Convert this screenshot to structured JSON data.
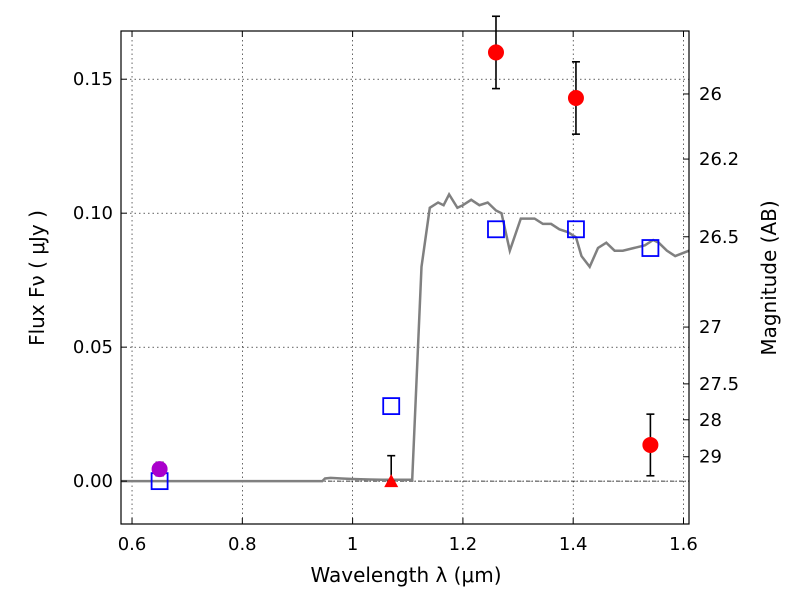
{
  "chart_data": {
    "type": "scatter",
    "title": "",
    "xlabel": "Wavelength  λ (μm)",
    "ylabel": "Flux  Fν  ( μJy )",
    "y2label": "Magnitude (AB)",
    "xlim": [
      0.58,
      1.61
    ],
    "ylim": [
      -0.016,
      0.168
    ],
    "grid": true,
    "x_ticks": [
      0.6,
      0.8,
      1.0,
      1.2,
      1.4,
      1.6
    ],
    "x_tick_labels": [
      "0.6",
      "0.8",
      "1",
      "1.2",
      "1.4",
      "1.6"
    ],
    "y_ticks": [
      0.0,
      0.05,
      0.1,
      0.15
    ],
    "y_tick_labels": [
      "0.00",
      "0.05",
      "0.10",
      "0.15"
    ],
    "y2_ticks": [
      {
        "label": "26",
        "flux": 0.1445
      },
      {
        "label": "26.2",
        "flux": 0.1202
      },
      {
        "label": "26.5",
        "flux": 0.0912
      },
      {
        "label": "27",
        "flux": 0.0575
      },
      {
        "label": "27.5",
        "flux": 0.0363
      },
      {
        "label": "28",
        "flux": 0.0229
      },
      {
        "label": "29",
        "flux": 0.0091
      }
    ],
    "zero_line": 0.0,
    "model_sed": {
      "color": "#808080",
      "x": [
        0.58,
        0.7,
        0.8,
        0.9,
        0.945,
        0.95,
        0.96,
        0.98,
        1.0,
        1.03,
        1.06,
        1.09,
        1.108,
        1.125,
        1.14,
        1.155,
        1.165,
        1.175,
        1.19,
        1.2,
        1.215,
        1.23,
        1.245,
        1.26,
        1.27,
        1.285,
        1.305,
        1.33,
        1.345,
        1.36,
        1.375,
        1.39,
        1.405,
        1.415,
        1.43,
        1.445,
        1.46,
        1.475,
        1.49,
        1.51,
        1.53,
        1.545,
        1.555,
        1.57,
        1.585,
        1.61
      ],
      "y": [
        0.0,
        0.0,
        0.0,
        0.0,
        0.0,
        0.001,
        0.0012,
        0.001,
        0.0008,
        0.0006,
        0.0005,
        0.0005,
        0.0005,
        0.08,
        0.102,
        0.104,
        0.103,
        0.107,
        0.102,
        0.103,
        0.105,
        0.103,
        0.104,
        0.101,
        0.1,
        0.086,
        0.098,
        0.098,
        0.096,
        0.096,
        0.094,
        0.093,
        0.091,
        0.084,
        0.08,
        0.087,
        0.089,
        0.086,
        0.086,
        0.087,
        0.088,
        0.09,
        0.089,
        0.086,
        0.084,
        0.086
      ]
    },
    "series": [
      {
        "marker": "circle",
        "color": "#ff0000",
        "points": [
          {
            "x": 1.26,
            "y": 0.16,
            "err": 0.0135
          },
          {
            "x": 1.405,
            "y": 0.143,
            "err": 0.0135
          },
          {
            "x": 1.54,
            "y": 0.0135,
            "err": 0.0115
          }
        ]
      },
      {
        "marker": "circle",
        "color": "#aa00cc",
        "points": [
          {
            "x": 0.65,
            "y": 0.0045,
            "err": 0.0025
          }
        ]
      },
      {
        "marker": "triangle",
        "color": "#ff0000",
        "points": [
          {
            "x": 1.07,
            "y": 0.0,
            "err_up": 0.0095
          }
        ]
      },
      {
        "marker": "square-open",
        "color": "#0000ff",
        "points": [
          {
            "x": 0.65,
            "y": 0.0
          },
          {
            "x": 1.07,
            "y": 0.028
          },
          {
            "x": 1.26,
            "y": 0.094
          },
          {
            "x": 1.405,
            "y": 0.094
          },
          {
            "x": 1.54,
            "y": 0.087
          }
        ]
      }
    ]
  }
}
